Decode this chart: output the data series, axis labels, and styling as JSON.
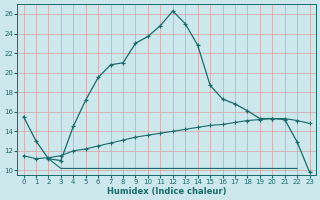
{
  "xlabel": "Humidex (Indice chaleur)",
  "xlim": [
    -0.5,
    23.5
  ],
  "ylim": [
    9.5,
    27.0
  ],
  "xticks": [
    0,
    1,
    2,
    3,
    4,
    5,
    6,
    7,
    8,
    9,
    10,
    11,
    12,
    13,
    14,
    15,
    16,
    17,
    18,
    19,
    20,
    21,
    22,
    23
  ],
  "yticks": [
    10,
    12,
    14,
    16,
    18,
    20,
    22,
    24,
    26
  ],
  "bg_color": "#cce8ec",
  "line_color": "#1a6b6b",
  "grid_color": "#d4a0a0",
  "line1_x": [
    0,
    1,
    2,
    3,
    4,
    5,
    6,
    7,
    8,
    9,
    10,
    11,
    12,
    13,
    14,
    15,
    16,
    17,
    18,
    19,
    20,
    21,
    22,
    23
  ],
  "line1_y": [
    15.5,
    13.0,
    11.2,
    11.0,
    14.5,
    17.2,
    19.5,
    20.8,
    21.0,
    23.0,
    23.7,
    24.8,
    26.3,
    25.0,
    22.8,
    18.7,
    17.3,
    16.8,
    16.1,
    15.3,
    15.3,
    15.2,
    12.9,
    9.8
  ],
  "line2_x": [
    0,
    1,
    2,
    3,
    4,
    5,
    6,
    7,
    8,
    9,
    10,
    11,
    12,
    13,
    14,
    15,
    16,
    17,
    18,
    19,
    20,
    21,
    22,
    23
  ],
  "line2_y": [
    11.5,
    11.2,
    11.3,
    11.5,
    12.0,
    12.2,
    12.5,
    12.8,
    13.1,
    13.4,
    13.6,
    13.8,
    14.0,
    14.2,
    14.4,
    14.6,
    14.7,
    14.9,
    15.1,
    15.2,
    15.3,
    15.3,
    15.1,
    14.8
  ],
  "line3_x": [
    2,
    3,
    4,
    5,
    6,
    7,
    8,
    9,
    10,
    11,
    12,
    13,
    14,
    15,
    16,
    17,
    18,
    19,
    20,
    21,
    22
  ],
  "line3_y": [
    11.2,
    10.2,
    10.2,
    10.2,
    10.2,
    10.2,
    10.2,
    10.2,
    10.2,
    10.2,
    10.2,
    10.2,
    10.2,
    10.2,
    10.2,
    10.2,
    10.2,
    10.2,
    10.2,
    10.2,
    10.2
  ]
}
